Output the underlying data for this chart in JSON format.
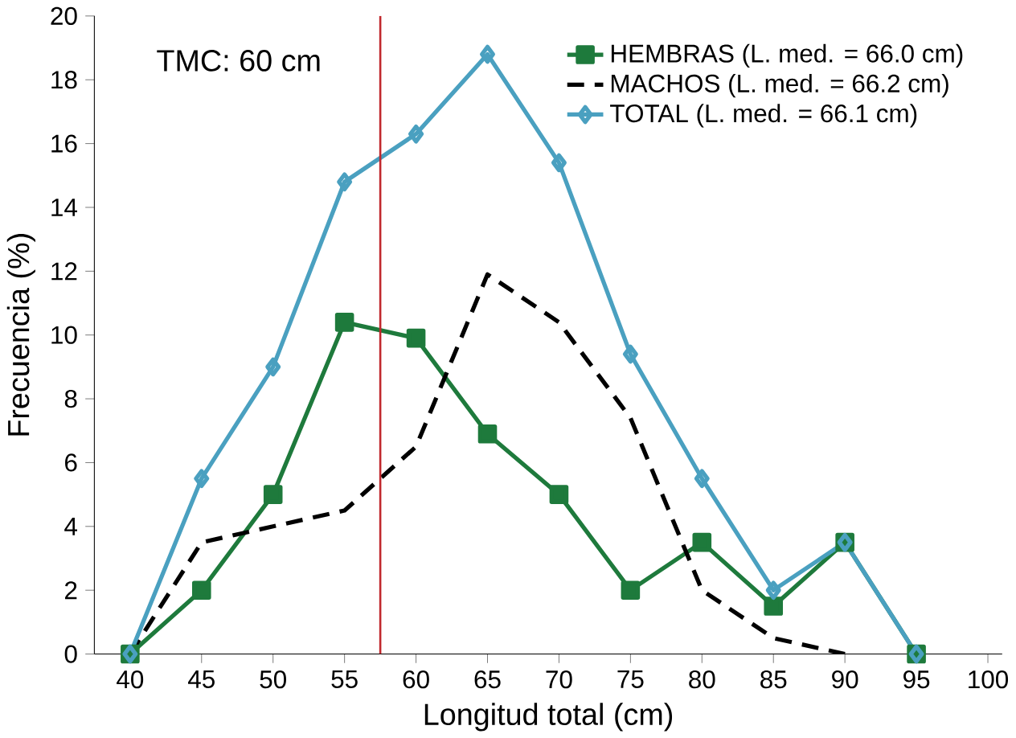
{
  "chart_data": {
    "type": "line",
    "xlabel": "Longitud total (cm)",
    "ylabel": "Frecuencia (%)",
    "x": [
      40,
      45,
      50,
      55,
      60,
      65,
      70,
      75,
      80,
      85,
      90,
      95
    ],
    "series": [
      {
        "name": "HEMBRAS (L. med. = 66.0 cm)",
        "color": "#1e7a3c",
        "marker": "square",
        "line_style": "solid",
        "values": [
          0,
          2,
          5,
          10.4,
          9.9,
          6.9,
          5,
          2,
          3.5,
          1.5,
          3.5,
          0
        ]
      },
      {
        "name": "MACHOS (L. med. = 66.2 cm)",
        "color": "#000000",
        "marker": "none",
        "line_style": "dashed",
        "values": [
          0,
          3.5,
          4,
          4.5,
          6.5,
          11.9,
          10.4,
          7.4,
          2,
          0.5,
          0,
          null
        ]
      },
      {
        "name": "TOTAL (L. med. = 66.1 cm)",
        "color": "#4aa0c0",
        "marker": "diamond",
        "line_style": "solid",
        "values": [
          0,
          5.5,
          9,
          14.8,
          16.3,
          18.8,
          15.4,
          9.4,
          5.5,
          2,
          3.5,
          0
        ]
      }
    ],
    "xlim": [
      37.5,
      101
    ],
    "ylim": [
      0,
      20
    ],
    "xticks": [
      40,
      45,
      50,
      55,
      60,
      65,
      70,
      75,
      80,
      85,
      90,
      95,
      100
    ],
    "yticks": [
      0,
      2,
      4,
      6,
      8,
      10,
      12,
      14,
      16,
      18,
      20
    ],
    "ref_lines": [
      {
        "axis": "x",
        "value": 57.5,
        "color": "#c0282d"
      }
    ],
    "annotations": [
      "TMC: 60 cm"
    ],
    "legend": "top right",
    "grid": false
  }
}
